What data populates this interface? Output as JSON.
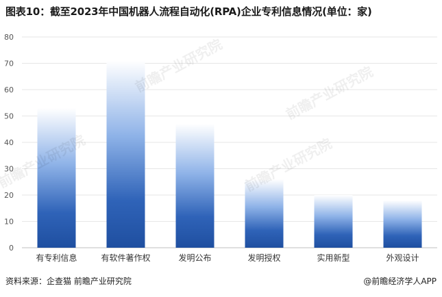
{
  "title": "图表10：截至2023年中国机器人流程自动化(RPA)企业专利信息情况(单位：家)",
  "source": "资料来源：企查猫 前瞻产业研究院",
  "credit": "@前瞻经济学人APP",
  "watermark": "前瞻产业研究院",
  "colors": {
    "bar_bottom": "#1f4fa0",
    "bar_top": "#ffffff",
    "grid": "#e6e6e6",
    "axis_text": "#555555"
  },
  "chart_data": {
    "type": "bar",
    "categories": [
      "有专利信息",
      "有软件著作权",
      "发明公布",
      "发明授权",
      "实用新型",
      "外观设计"
    ],
    "values": [
      53,
      71,
      47,
      26,
      20,
      18
    ],
    "ylim": [
      0,
      80
    ],
    "yticks": [
      0,
      10,
      20,
      30,
      40,
      50,
      60,
      70,
      80
    ],
    "grid": true,
    "legend": "none"
  }
}
